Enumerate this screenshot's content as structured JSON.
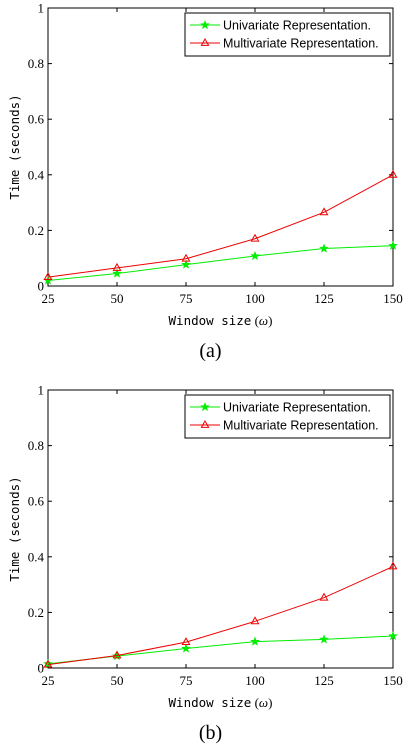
{
  "chart_data": [
    {
      "type": "line",
      "caption": "(a)",
      "xlabel": "Window size (ω)",
      "xlabel_text": "Window size",
      "xlabel_symbol": "ω",
      "ylabel": "Time (seconds)",
      "x": [
        25,
        50,
        75,
        100,
        125,
        150
      ],
      "xlim": [
        25,
        150
      ],
      "ylim": [
        0,
        1
      ],
      "x_tick_labels": [
        "25",
        "50",
        "75",
        "100",
        "125",
        "150"
      ],
      "y_tick_labels": [
        "0",
        "0.2",
        "0.4",
        "0.6",
        "0.8",
        "1"
      ],
      "y_ticks": [
        0,
        0.2,
        0.4,
        0.6,
        0.8,
        1
      ],
      "legend_position": "top-right",
      "series": [
        {
          "name": "Univariate Representation.",
          "color": "#00ee00",
          "marker": "star",
          "values": [
            0.02,
            0.045,
            0.077,
            0.108,
            0.135,
            0.145
          ]
        },
        {
          "name": "Multivariate Representation.",
          "color": "#ee0000",
          "marker": "triangle",
          "values": [
            0.032,
            0.065,
            0.098,
            0.17,
            0.265,
            0.4
          ]
        }
      ]
    },
    {
      "type": "line",
      "caption": "(b)",
      "xlabel": "Window size (ω)",
      "xlabel_text": "Window size",
      "xlabel_symbol": "ω",
      "ylabel": "Time (seconds)",
      "x": [
        25,
        50,
        75,
        100,
        125,
        150
      ],
      "xlim": [
        25,
        150
      ],
      "ylim": [
        0,
        1
      ],
      "x_tick_labels": [
        "25",
        "50",
        "75",
        "100",
        "125",
        "150"
      ],
      "y_tick_labels": [
        "0",
        "0.2",
        "0.4",
        "0.6",
        "0.8",
        "1"
      ],
      "y_ticks": [
        0,
        0.2,
        0.4,
        0.6,
        0.8,
        1
      ],
      "legend_position": "top-right",
      "series": [
        {
          "name": "Univariate Representation.",
          "color": "#00ee00",
          "marker": "star",
          "values": [
            0.015,
            0.043,
            0.07,
            0.095,
            0.103,
            0.115
          ]
        },
        {
          "name": "Multivariate Representation.",
          "color": "#ee0000",
          "marker": "triangle",
          "values": [
            0.012,
            0.045,
            0.093,
            0.168,
            0.253,
            0.365
          ]
        }
      ]
    }
  ]
}
